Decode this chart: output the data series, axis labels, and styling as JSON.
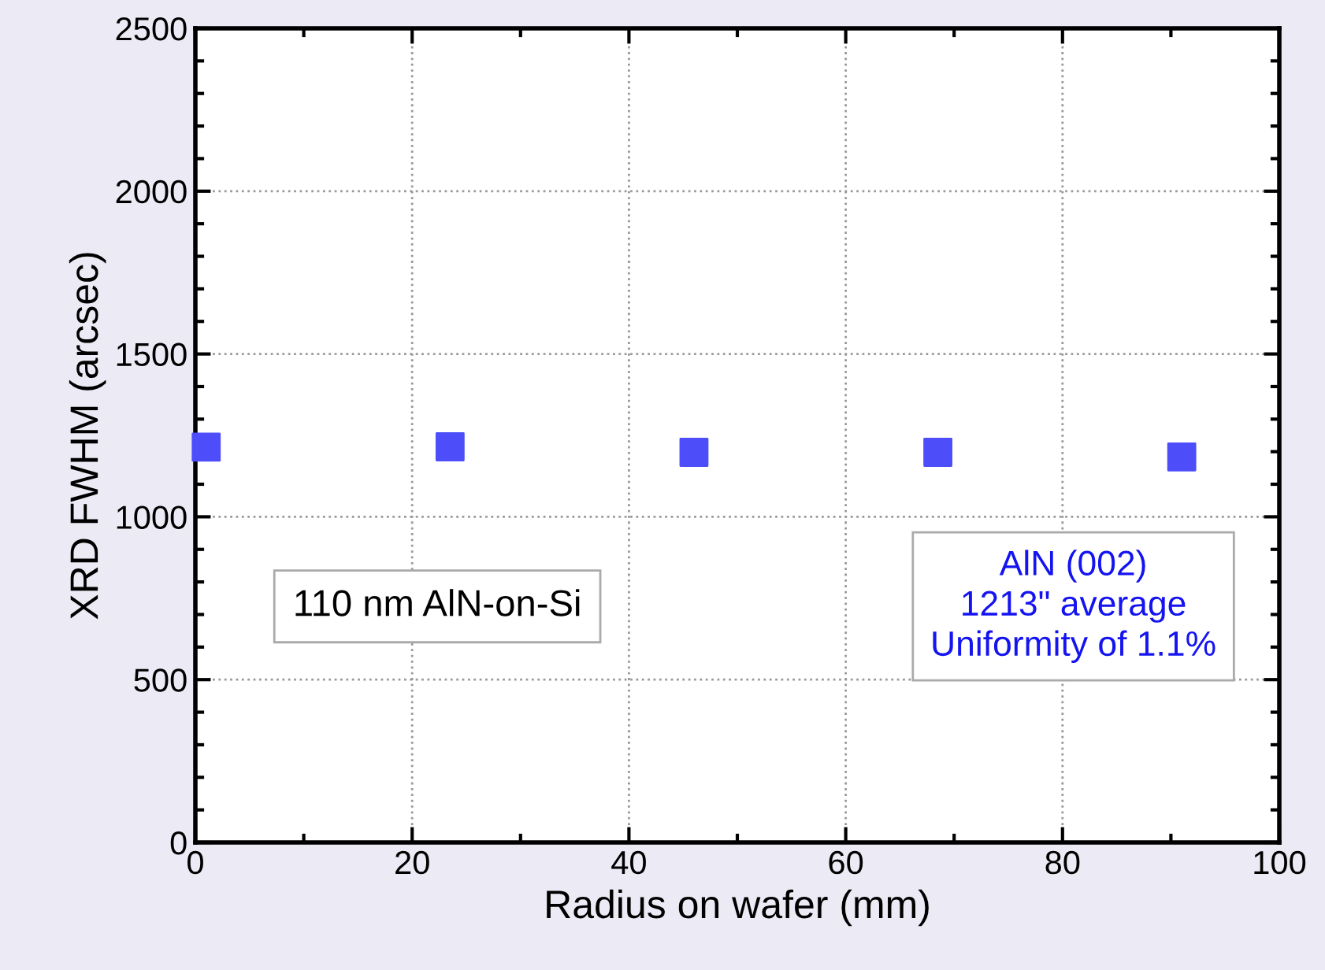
{
  "chart_data": {
    "type": "scatter",
    "xlabel": "Radius on wafer (mm)",
    "ylabel": "XRD FWHM (arcsec)",
    "x": [
      1,
      23.5,
      46,
      68.5,
      91
    ],
    "series": [
      {
        "color": "#4d4dfa",
        "values": [
          1214,
          1215,
          1198,
          1198,
          1184
        ]
      }
    ],
    "marker": "square",
    "xlim": [
      0,
      100
    ],
    "xticks": [
      0,
      20,
      40,
      60,
      80,
      100
    ],
    "ylim": [
      0,
      2500
    ],
    "yticks": [
      0,
      500,
      1000,
      1500,
      2000,
      2500
    ],
    "grid": true,
    "annotations": [
      {
        "text": "110 nm AlN-on-Si"
      },
      {
        "text": "AlN (002)\n1213\" average\nUniformity of 1.1%"
      }
    ]
  }
}
